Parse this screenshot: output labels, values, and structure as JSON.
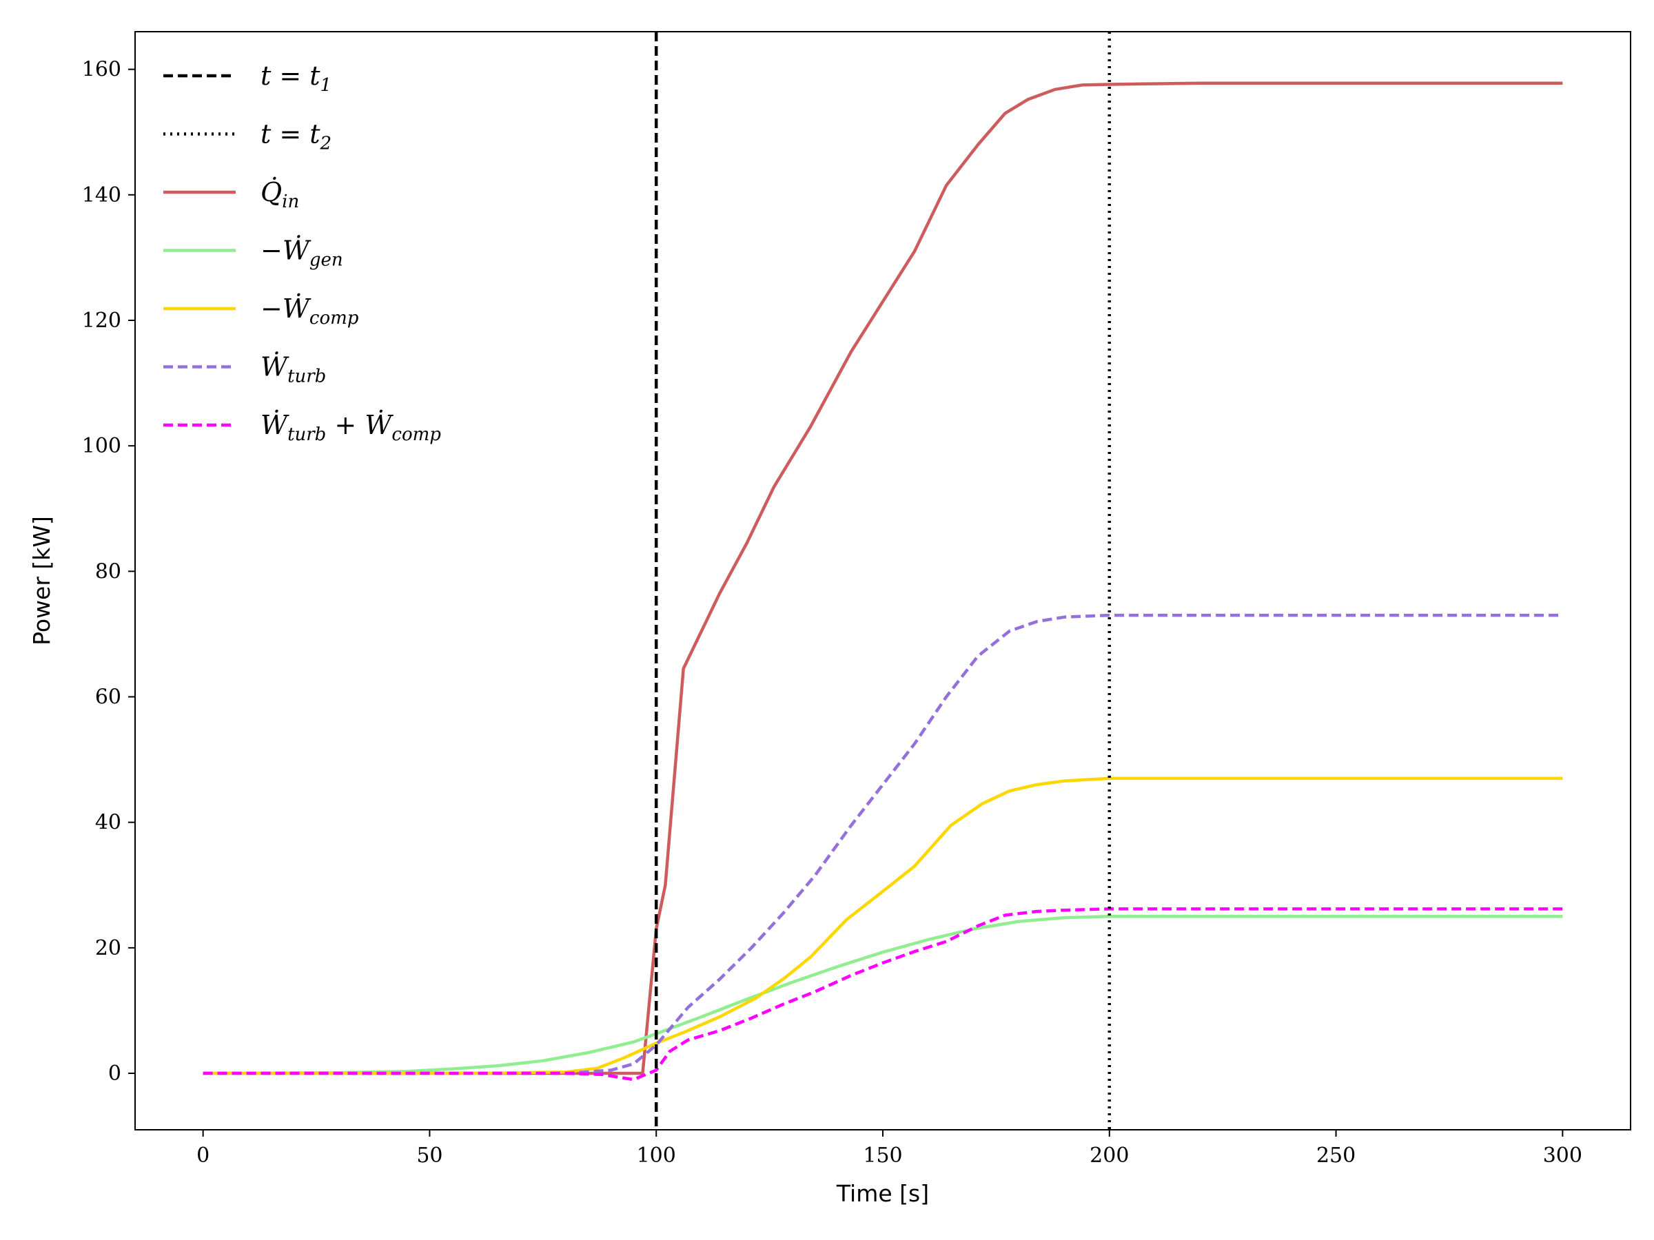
{
  "chart_data": {
    "type": "line",
    "title": "",
    "xlabel": "Time [s]",
    "ylabel": "Power [kW]",
    "xlim": [
      -15,
      315
    ],
    "ylim": [
      -9,
      166
    ],
    "xticks": [
      0,
      50,
      100,
      150,
      200,
      250,
      300
    ],
    "yticks": [
      0,
      20,
      40,
      60,
      80,
      100,
      120,
      140,
      160
    ],
    "grid": false,
    "legend_position": "top-left",
    "vlines": [
      {
        "x": 100,
        "style": "dashed",
        "color": "#000000",
        "label": "t = t1",
        "label_main": "t = t",
        "label_sub": "1"
      },
      {
        "x": 200,
        "style": "dotted",
        "color": "#000000",
        "label": "t = t2",
        "label_main": "t = t",
        "label_sub": "2"
      }
    ],
    "series": [
      {
        "name": "Q̇in",
        "label_main": "Q̇",
        "label_sub": "in",
        "color": "#cd5c5c",
        "style": "solid",
        "x": [
          0,
          50,
          94,
          97,
          100,
          102,
          106,
          110,
          114,
          120,
          126,
          134,
          143,
          150,
          157,
          164,
          171,
          177,
          182,
          188,
          194,
          200,
          220,
          300
        ],
        "y": [
          0,
          0,
          0,
          0,
          23,
          30,
          64.5,
          70.5,
          76.5,
          84.5,
          93.5,
          103,
          115,
          123,
          131,
          141.5,
          148,
          153,
          155.2,
          156.8,
          157.5,
          157.6,
          157.8,
          157.8
        ]
      },
      {
        "name": "−Ẇgen",
        "label_main": "−Ẇ",
        "label_sub": "gen",
        "color": "#90ee90",
        "style": "solid",
        "x": [
          0,
          30,
          45,
          55,
          65,
          75,
          85,
          95,
          100,
          110,
          120,
          130,
          140,
          150,
          160,
          170,
          180,
          190,
          200,
          300
        ],
        "y": [
          0,
          0.1,
          0.3,
          0.7,
          1.2,
          2,
          3.3,
          5,
          6.3,
          9,
          11.8,
          14.5,
          17,
          19.3,
          21.3,
          23,
          24.2,
          24.8,
          25,
          25
        ]
      },
      {
        "name": "−Ẇcomp",
        "label_main": "−Ẇ",
        "label_sub": "comp",
        "color": "#ffd700",
        "style": "solid",
        "x": [
          0,
          60,
          80,
          87,
          93,
          100,
          106,
          114,
          122,
          128,
          134,
          142,
          150,
          157,
          165,
          172,
          178,
          184,
          190,
          200,
          300
        ],
        "y": [
          0,
          0,
          0.2,
          0.8,
          2.5,
          4.8,
          6.5,
          9,
          12,
          15,
          18.5,
          24.5,
          29,
          33,
          39.5,
          43,
          45,
          46,
          46.6,
          47,
          47
        ]
      },
      {
        "name": "Ẇturb",
        "label_main": "Ẇ",
        "label_sub": "turb",
        "color": "#9370db",
        "style": "dashed",
        "x": [
          0,
          80,
          90,
          95,
          100,
          107,
          114,
          121,
          128,
          135,
          143,
          150,
          157,
          164,
          171,
          178,
          184,
          190,
          200,
          300
        ],
        "y": [
          0,
          0,
          0.5,
          1.5,
          4.5,
          10.5,
          15,
          20,
          25.5,
          31.5,
          39.5,
          46,
          52.5,
          60,
          66.5,
          70.5,
          72,
          72.7,
          73,
          73
        ]
      },
      {
        "name": "Ẇturb + Ẇcomp",
        "label_main": "Ẇ",
        "label_sub": "turb",
        "label_mid": " + Ẇ",
        "label_sub2": "comp",
        "color": "#ff00ff",
        "style": "dashed",
        "x": [
          0,
          80,
          88,
          95,
          100,
          103,
          107,
          114,
          121,
          128,
          135,
          143,
          150,
          157,
          164,
          171,
          177,
          184,
          190,
          200,
          300
        ],
        "y": [
          0,
          0,
          -0.2,
          -1,
          0.5,
          3.5,
          5.3,
          6.8,
          8.8,
          11,
          13,
          15.6,
          17.6,
          19.4,
          21,
          23.5,
          25.2,
          25.8,
          26,
          26.2,
          26.2
        ]
      }
    ]
  }
}
